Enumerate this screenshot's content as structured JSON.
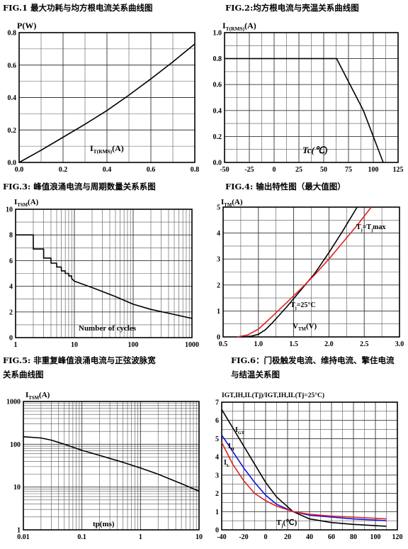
{
  "chart_data": [
    {
      "id": "fig1",
      "type": "line",
      "title": "FIG.1 最大功耗与均方根电流关系曲线图",
      "ylabel": "P(W)",
      "xlabel": "IT(RMS)(A)",
      "xlabel_main": "I",
      "xlabel_sub": "T(RMS)",
      "xlabel_tail": "(A)",
      "xlim": [
        0,
        0.8
      ],
      "ylim": [
        0,
        0.8
      ],
      "xticks": [
        0.0,
        0.2,
        0.4,
        0.6,
        0.8
      ],
      "xtick_labels": [
        "0.0",
        "0.2",
        "0.4",
        "0.6",
        "0.8"
      ],
      "yticks": [
        0.0,
        0.2,
        0.4,
        0.6,
        0.8
      ],
      "ytick_labels": [
        "0.0",
        "0.2",
        "0.4",
        "0.6",
        "0.8"
      ],
      "grid": true,
      "series": [
        {
          "color": "#000000",
          "x": [
            0,
            0.1,
            0.2,
            0.3,
            0.4,
            0.5,
            0.6,
            0.7,
            0.8
          ],
          "y": [
            0,
            0.075,
            0.155,
            0.235,
            0.32,
            0.415,
            0.515,
            0.62,
            0.73
          ]
        }
      ]
    },
    {
      "id": "fig2",
      "type": "line",
      "title": "FIG.2:均方根电流与壳温关系曲线图",
      "ylabel": "IT(RMS)(A)",
      "ylabel_main": "I",
      "ylabel_sub": "T(RMS)",
      "ylabel_tail": "(A)",
      "xlabel": "Tc(℃)",
      "xlim": [
        -50,
        125
      ],
      "ylim": [
        0,
        1.0
      ],
      "xticks": [
        -50,
        -25,
        0,
        25,
        50,
        75,
        100,
        125
      ],
      "xtick_labels": [
        "-50",
        "-25",
        "0",
        "25",
        "50",
        "75",
        "100",
        "125"
      ],
      "yticks": [
        0.0,
        0.2,
        0.4,
        0.6,
        0.8,
        1.0
      ],
      "ytick_labels": [
        "0.0",
        "0.2",
        "0.4",
        "0.6",
        "0.8",
        "1.0"
      ],
      "grid": true,
      "series": [
        {
          "color": "#000000",
          "x": [
            -50,
            63,
            90,
            110
          ],
          "y": [
            0.8,
            0.8,
            0.4,
            0.0
          ]
        }
      ]
    },
    {
      "id": "fig3",
      "type": "line",
      "title": "FIG.3: 峰值浪涌电流与周期数量关系系图",
      "ylabel": "ITSM(A)",
      "ylabel_main": "I",
      "ylabel_sub": "TSM",
      "ylabel_tail": "(A)",
      "xlabel": "Number of cycles",
      "xscale": "log",
      "xlim": [
        1,
        1000
      ],
      "ylim": [
        0,
        10
      ],
      "xticks": [
        1,
        10,
        100,
        1000
      ],
      "xtick_labels": [
        "1",
        "10",
        "100",
        "1000"
      ],
      "yticks": [
        0,
        2,
        4,
        6,
        8,
        10
      ],
      "ytick_labels": [
        "0",
        "2",
        "4",
        "6",
        "8",
        "10"
      ],
      "grid": true,
      "series": [
        {
          "color": "#000000",
          "x": [
            1,
            2,
            2,
            3,
            3,
            4,
            4,
            5,
            5,
            6,
            6,
            7,
            7,
            8,
            8,
            9,
            9,
            10,
            20,
            50,
            100,
            200,
            500,
            1000
          ],
          "y": [
            8,
            8,
            6.9,
            6.9,
            6.2,
            6.2,
            5.8,
            5.8,
            5.5,
            5.5,
            5.2,
            5.2,
            5.0,
            5.0,
            4.8,
            4.8,
            4.6,
            4.4,
            3.9,
            3.2,
            2.6,
            2.2,
            1.8,
            1.5
          ]
        }
      ]
    },
    {
      "id": "fig4",
      "type": "line",
      "title": "FIG.4: 输出特性图（最大值图）",
      "ylabel": "ITM(A)",
      "ylabel_main": "I",
      "ylabel_sub": "TM",
      "ylabel_tail": "(A)",
      "xlabel": "VTM(V)",
      "xlabel_main": "V",
      "xlabel_sub": "TM",
      "xlabel_tail": "(V)",
      "xlim": [
        0.5,
        3.0
      ],
      "ylim": [
        0,
        5
      ],
      "xticks": [
        0.5,
        1.0,
        1.5,
        2.0,
        2.5,
        3.0
      ],
      "xtick_labels": [
        "0.5",
        "1.0",
        "1.5",
        "2.0",
        "2.5",
        "3.0"
      ],
      "yticks": [
        0,
        1,
        2,
        3,
        4,
        5
      ],
      "ytick_labels": [
        "0",
        "1",
        "2",
        "3",
        "4",
        "5"
      ],
      "grid": true,
      "annotations": [
        {
          "main": "T",
          "sub": "j",
          "tail": "=T",
          "sub2": "j",
          "tail2": "max",
          "x": 2.65,
          "y": 4.2
        },
        {
          "main": "T",
          "sub": "j",
          "tail": "=25°C",
          "sub2": "",
          "tail2": "",
          "x": 1.35,
          "y": 1.15
        }
      ],
      "series": [
        {
          "name": "Tj=25°C",
          "color": "#000000",
          "x": [
            0.75,
            0.9,
            1.0,
            1.1,
            1.2,
            1.4,
            1.6,
            1.8,
            2.0,
            2.2,
            2.4
          ],
          "y": [
            0,
            0.03,
            0.1,
            0.28,
            0.55,
            1.15,
            1.8,
            2.45,
            3.25,
            4.1,
            5.0
          ]
        },
        {
          "name": "Tj=Tjmax",
          "color": "#e02020",
          "x": [
            0.7,
            0.85,
            1.0,
            1.1,
            1.2,
            1.4,
            1.6,
            1.8,
            2.0,
            2.2,
            2.4,
            2.6
          ],
          "y": [
            0,
            0.08,
            0.3,
            0.55,
            0.8,
            1.32,
            1.85,
            2.4,
            3.0,
            3.65,
            4.3,
            5.0
          ]
        }
      ]
    },
    {
      "id": "fig5",
      "type": "line",
      "title": "FIG.5: 非重复峰值浪涌电流与正弦波脉宽关系曲线图",
      "title_lines": [
        "FIG.5: 非重复峰值浪涌电流与正弦波脉宽",
        "关系曲线图"
      ],
      "ylabel": "ITSM(A)",
      "ylabel_main": "I",
      "ylabel_sub": "TSM",
      "ylabel_tail": "(A)",
      "xlabel": "tp(ms)",
      "xscale": "log",
      "yscale": "log",
      "xlim": [
        0.01,
        10
      ],
      "ylim": [
        1,
        1000
      ],
      "xticks": [
        0.01,
        0.1,
        1,
        10
      ],
      "xtick_labels": [
        "0.01",
        "0.1",
        "1",
        "10"
      ],
      "yticks": [
        1,
        10,
        100,
        1000
      ],
      "ytick_labels": [
        "1",
        "10",
        "100",
        "1000"
      ],
      "grid": true,
      "series": [
        {
          "color": "#000000",
          "x": [
            0.01,
            0.02,
            0.03,
            0.05,
            0.1,
            0.2,
            0.5,
            1,
            2,
            5,
            10
          ],
          "y": [
            150,
            140,
            125,
            100,
            72,
            55,
            38,
            28,
            20,
            12,
            8
          ]
        }
      ]
    },
    {
      "id": "fig6",
      "type": "line",
      "title": "FIG.6：门极触发电流、维持电流、擎住电流与结温关系图",
      "title_lines": [
        "FIG.6：门极触发电流、维持电流、擎住电流",
        "与结温关系图"
      ],
      "ylabel": "IGT,IH,IL(Tj)/IGT,IH,IL(Tj=25°C)",
      "xlabel": "Tj(℃)",
      "xlabel_main": "T",
      "xlabel_sub": "j",
      "xlabel_tail": "(℃)",
      "xlim": [
        -40,
        120
      ],
      "ylim": [
        0,
        7
      ],
      "xticks": [
        -40,
        -20,
        0,
        20,
        40,
        60,
        80,
        100,
        120
      ],
      "xtick_labels": [
        "-40",
        "-20",
        "0",
        "20",
        "40",
        "60",
        "80",
        "100",
        "120"
      ],
      "yticks": [
        0,
        1,
        2,
        3,
        4,
        5,
        6,
        7
      ],
      "ytick_labels": [
        "0",
        "1",
        "2",
        "3",
        "4",
        "5",
        "6",
        "7"
      ],
      "grid": true,
      "series": [
        {
          "name": "IGT",
          "color": "#000000",
          "x": [
            -40,
            -30,
            -20,
            -10,
            0,
            10,
            25,
            40,
            60,
            80,
            110
          ],
          "y": [
            6.6,
            5.6,
            4.6,
            3.6,
            2.6,
            1.8,
            1.0,
            0.6,
            0.4,
            0.3,
            0.2
          ]
        },
        {
          "name": "IH",
          "color": "#1010e0",
          "x": [
            -40,
            -30,
            -20,
            -10,
            0,
            10,
            25,
            40,
            60,
            80,
            110
          ],
          "y": [
            5.2,
            4.3,
            3.4,
            2.6,
            1.9,
            1.4,
            1.0,
            0.8,
            0.7,
            0.6,
            0.5
          ]
        },
        {
          "name": "IL",
          "color": "#e02020",
          "x": [
            -40,
            -30,
            -20,
            -10,
            0,
            10,
            25,
            40,
            60,
            80,
            110
          ],
          "y": [
            4.8,
            3.6,
            2.7,
            2.0,
            1.6,
            1.3,
            1.0,
            0.85,
            0.75,
            0.7,
            0.6
          ]
        }
      ],
      "labels": [
        {
          "main": "I",
          "sub": "GT",
          "x": -31,
          "y": 5.7
        },
        {
          "main": "I",
          "sub": "H",
          "x": -36,
          "y": 4.5
        },
        {
          "main": "I",
          "sub": "L",
          "x": -40,
          "y": 3.8
        }
      ]
    }
  ]
}
